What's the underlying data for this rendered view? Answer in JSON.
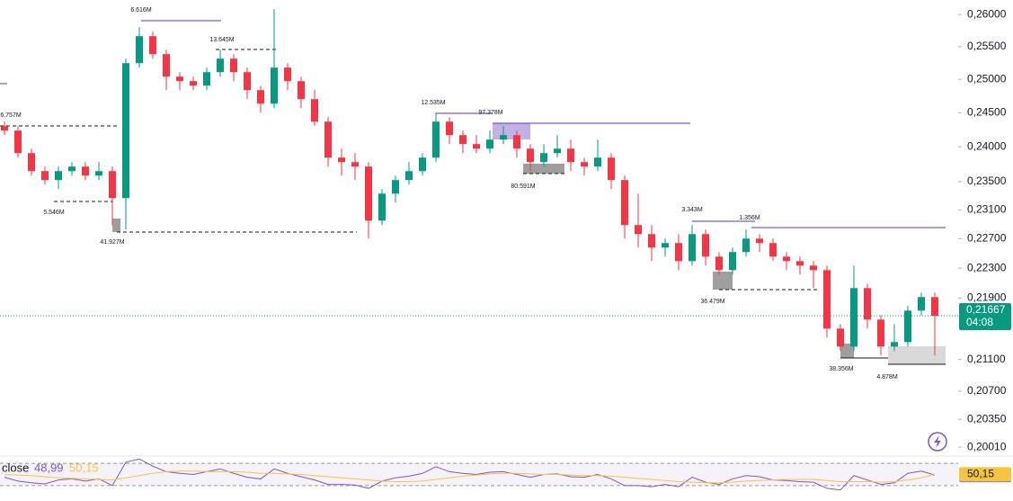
{
  "chart_data": {
    "type": "candlestick",
    "log_scale": true,
    "up_color": "#089981",
    "down_color": "#f23645",
    "ylim": [
      0.1987,
      0.2623
    ],
    "yticks": [
      {
        "value": 0.26,
        "label": "0,26000"
      },
      {
        "value": 0.255,
        "label": "0,25500"
      },
      {
        "value": 0.25,
        "label": "0,25000"
      },
      {
        "value": 0.245,
        "label": "0,24500"
      },
      {
        "value": 0.24,
        "label": "0,24000"
      },
      {
        "value": 0.235,
        "label": "0,23500"
      },
      {
        "value": 0.231,
        "label": "0,23100"
      },
      {
        "value": 0.227,
        "label": "0,22700"
      },
      {
        "value": 0.223,
        "label": "0,22300"
      },
      {
        "value": 0.219,
        "label": "0,21900"
      },
      {
        "value": 0.211,
        "label": "0,21100"
      },
      {
        "value": 0.207,
        "label": "0,20700"
      },
      {
        "value": 0.2035,
        "label": "0,20350"
      },
      {
        "value": 0.2001,
        "label": "0,20010"
      }
    ],
    "open": [
      0.24302,
      0.24236,
      0.23908,
      0.23649,
      0.23521,
      0.23649,
      0.23714,
      0.23585,
      0.23649,
      0.23266,
      0.25246,
      0.25662,
      0.25384,
      0.25041,
      0.24973,
      0.24905,
      0.25109,
      0.25315,
      0.25109,
      0.24837,
      0.24635,
      0.25178,
      0.24973,
      0.24702,
      0.24368,
      0.23843,
      0.23778,
      0.23714,
      0.22951,
      0.23329,
      0.23521,
      0.23649,
      0.23843,
      0.24368,
      0.2417,
      0.24039,
      0.23973,
      0.24104,
      0.2417,
      0.23973,
      0.23778,
      0.23908,
      0.23973,
      0.23778,
      0.23714,
      0.23843,
      0.23521,
      0.22889,
      0.22764,
      0.22579,
      0.22641,
      0.22395,
      0.22764,
      0.22456,
      0.22273,
      0.22518,
      0.22702,
      0.22641,
      0.22456,
      0.22395,
      0.22334,
      0.22273,
      0.21499,
      0.21266,
      0.22032,
      0.21616,
      0.21266,
      0.21324,
      0.21734,
      0.21913
    ],
    "high": [
      0.24368,
      0.24302,
      0.23973,
      0.23714,
      0.23714,
      0.23778,
      0.23778,
      0.23778,
      0.23714,
      0.25315,
      0.25803,
      0.25733,
      0.25454,
      0.25109,
      0.25041,
      0.25178,
      0.25454,
      0.25384,
      0.25178,
      0.24905,
      0.26085,
      0.25246,
      0.25041,
      0.24837,
      0.24435,
      0.23973,
      0.23908,
      0.23778,
      0.23393,
      0.23585,
      0.23778,
      0.23908,
      0.24501,
      0.24435,
      0.24236,
      0.2417,
      0.24236,
      0.24302,
      0.24236,
      0.24039,
      0.24039,
      0.2417,
      0.24104,
      0.23843,
      0.24104,
      0.23908,
      0.23585,
      0.23329,
      0.22889,
      0.22702,
      0.22764,
      0.22889,
      0.22826,
      0.22518,
      0.22579,
      0.22826,
      0.22764,
      0.22702,
      0.22518,
      0.22456,
      0.22395,
      0.22334,
      0.21557,
      0.22334,
      0.22092,
      0.21675,
      0.21557,
      0.21794,
      0.21972,
      0.21972
    ],
    "low": [
      0.2417,
      0.23843,
      0.23585,
      0.23456,
      0.23393,
      0.23585,
      0.23521,
      0.23521,
      0.22889,
      0.22826,
      0.25178,
      0.25315,
      0.24837,
      0.24837,
      0.24837,
      0.24837,
      0.25041,
      0.24973,
      0.24702,
      0.24501,
      0.24568,
      0.24837,
      0.24568,
      0.24302,
      0.23714,
      0.23585,
      0.23521,
      0.22702,
      0.22889,
      0.23202,
      0.23456,
      0.23585,
      0.23778,
      0.24039,
      0.23908,
      0.23908,
      0.23908,
      0.24039,
      0.23843,
      0.23649,
      0.23714,
      0.23843,
      0.23649,
      0.23585,
      0.23649,
      0.23393,
      0.22702,
      0.22579,
      0.22395,
      0.22456,
      0.22273,
      0.22334,
      0.22334,
      0.22213,
      0.22213,
      0.22456,
      0.22518,
      0.22395,
      0.22273,
      0.22213,
      0.22032,
      0.21382,
      0.21208,
      0.21208,
      0.21499,
      0.21151,
      0.21208,
      0.21266,
      0.21675,
      0.21151
    ],
    "close": [
      0.24236,
      0.23908,
      0.23649,
      0.23521,
      0.23649,
      0.23714,
      0.23585,
      0.23649,
      0.23266,
      0.25246,
      0.25662,
      0.25384,
      0.25041,
      0.24973,
      0.24905,
      0.25109,
      0.25315,
      0.25109,
      0.24837,
      0.24635,
      0.25178,
      0.24973,
      0.24702,
      0.24368,
      0.23843,
      0.23778,
      0.23714,
      0.22951,
      0.23329,
      0.23521,
      0.23649,
      0.23843,
      0.24368,
      0.2417,
      0.24039,
      0.23973,
      0.24104,
      0.2417,
      0.23973,
      0.23778,
      0.23908,
      0.23973,
      0.23778,
      0.23714,
      0.23843,
      0.23521,
      0.22889,
      0.22764,
      0.22579,
      0.22641,
      0.22395,
      0.22764,
      0.22456,
      0.22273,
      0.22518,
      0.22702,
      0.22641,
      0.22456,
      0.22395,
      0.22334,
      0.22273,
      0.21499,
      0.21266,
      0.22032,
      0.21616,
      0.21266,
      0.21324,
      0.21734,
      0.21913,
      0.21667
    ],
    "last_price": {
      "value": 0.21667,
      "label": "0,21667"
    },
    "countdown": "04:08",
    "annotations": [
      "6.616M",
      "13.645M",
      "6.757M",
      "5.546M",
      "41.927M",
      "12.535M",
      "97.378M",
      "80.591M",
      "3.343M",
      "1.356M",
      "36.479M",
      "38.356M",
      "4.878M"
    ],
    "rsi": {
      "name": "close",
      "ylim": [
        20,
        80
      ],
      "bands": [
        30,
        70
      ],
      "series": [
        {
          "color": "#7e57c2",
          "last_label": "48,99",
          "values": [
            45,
            38,
            35,
            33,
            40,
            42,
            38,
            42,
            30,
            72,
            78,
            65,
            55,
            52,
            50,
            55,
            60,
            52,
            45,
            42,
            60,
            52,
            46,
            40,
            32,
            32,
            31,
            25,
            38,
            44,
            47,
            52,
            64,
            55,
            52,
            50,
            54,
            55,
            50,
            45,
            50,
            51,
            46,
            45,
            50,
            42,
            30,
            30,
            28,
            32,
            28,
            45,
            36,
            32,
            42,
            48,
            46,
            40,
            39,
            37,
            36,
            25,
            22,
            48,
            40,
            32,
            35,
            52,
            56,
            48.99
          ]
        },
        {
          "color": "#f5c542",
          "last_label": "50,15",
          "values": [
            50,
            49,
            48,
            46,
            44,
            43,
            42,
            41,
            40,
            44,
            48,
            52,
            55,
            56,
            56,
            55,
            55,
            55,
            54,
            52,
            52,
            51,
            50,
            48,
            46,
            44,
            42,
            40,
            38,
            37,
            37,
            38,
            41,
            44,
            47,
            49,
            51,
            52,
            52,
            51,
            50,
            50,
            49,
            48,
            48,
            47,
            45,
            43,
            41,
            39,
            37,
            36,
            35,
            35,
            36,
            38,
            39,
            40,
            41,
            41,
            41,
            39,
            37,
            37,
            37,
            36,
            37,
            40,
            44,
            50.15
          ]
        }
      ]
    }
  }
}
